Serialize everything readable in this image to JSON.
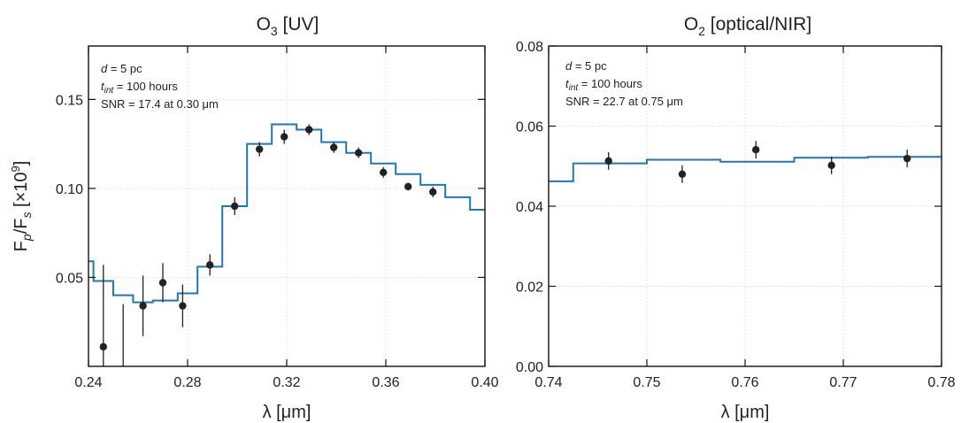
{
  "figure": {
    "ylabel_main": "F",
    "ylabel_sub1": "p",
    "ylabel_mid": "/F",
    "ylabel_sub2": "s",
    "ylabel_unit": " [×10",
    "ylabel_exp": "9",
    "ylabel_close": "]"
  },
  "colors": {
    "model": "#1f77b4",
    "points": "#222222",
    "frame": "#111111",
    "grid": "#e3e3e3"
  },
  "chart_data": [
    {
      "type": "line",
      "title_main": "O",
      "title_sub": "3",
      "title_rest": " [UV]",
      "xlabel": "λ [μm]",
      "ylabel": "Fp/Fs [×10^9]",
      "xlim": [
        0.24,
        0.4
      ],
      "ylim": [
        0.0,
        0.18
      ],
      "xticks": [
        0.24,
        0.28,
        0.32,
        0.36,
        0.4
      ],
      "xtick_labels": [
        "0.24",
        "0.28",
        "0.32",
        "0.36",
        "0.40"
      ],
      "yticks": [
        0.05,
        0.1,
        0.15
      ],
      "ytick_labels": [
        "0.05",
        "0.10",
        "0.15"
      ],
      "grid": true,
      "annotation": {
        "line1_var": "d",
        "line1_rest": " = 5 pc",
        "line2_var": "t",
        "line2_sub": "int",
        "line2_rest": " = 100 hours",
        "line3": "SNR = 17.4 at 0.30 μm"
      },
      "model_steps": {
        "edges": [
          0.24,
          0.242,
          0.25,
          0.258,
          0.266,
          0.276,
          0.284,
          0.294,
          0.304,
          0.314,
          0.324,
          0.334,
          0.344,
          0.354,
          0.364,
          0.374,
          0.384,
          0.394,
          0.4
        ],
        "values": [
          0.059,
          0.048,
          0.04,
          0.036,
          0.037,
          0.041,
          0.056,
          0.09,
          0.125,
          0.136,
          0.133,
          0.126,
          0.12,
          0.114,
          0.108,
          0.102,
          0.095,
          0.088
        ]
      },
      "points": [
        {
          "x": 0.246,
          "y": 0.011,
          "yerr": 0.046
        },
        {
          "x": 0.254,
          "y": -0.01,
          "yerr": 0.045
        },
        {
          "x": 0.262,
          "y": 0.034,
          "yerr": 0.017
        },
        {
          "x": 0.27,
          "y": 0.047,
          "yerr": 0.011
        },
        {
          "x": 0.278,
          "y": 0.034,
          "yerr": 0.012
        },
        {
          "x": 0.289,
          "y": 0.057,
          "yerr": 0.006
        },
        {
          "x": 0.299,
          "y": 0.09,
          "yerr": 0.005
        },
        {
          "x": 0.309,
          "y": 0.122,
          "yerr": 0.004
        },
        {
          "x": 0.319,
          "y": 0.129,
          "yerr": 0.004
        },
        {
          "x": 0.329,
          "y": 0.133,
          "yerr": 0.003
        },
        {
          "x": 0.339,
          "y": 0.123,
          "yerr": 0.003
        },
        {
          "x": 0.349,
          "y": 0.12,
          "yerr": 0.003
        },
        {
          "x": 0.359,
          "y": 0.109,
          "yerr": 0.003
        },
        {
          "x": 0.369,
          "y": 0.101,
          "yerr": 0.002
        },
        {
          "x": 0.379,
          "y": 0.098,
          "yerr": 0.003
        }
      ]
    },
    {
      "type": "line",
      "title_main": "O",
      "title_sub": "2",
      "title_rest": " [optical/NIR]",
      "xlabel": "λ [μm]",
      "ylabel": "",
      "xlim": [
        0.74,
        0.78
      ],
      "ylim": [
        0.0,
        0.08
      ],
      "xticks": [
        0.74,
        0.75,
        0.76,
        0.77,
        0.78
      ],
      "xtick_labels": [
        "0.74",
        "0.75",
        "0.76",
        "0.77",
        "0.78"
      ],
      "yticks": [
        0.0,
        0.02,
        0.04,
        0.06,
        0.08
      ],
      "ytick_labels": [
        "0.00",
        "0.02",
        "0.04",
        "0.06",
        "0.08"
      ],
      "grid": true,
      "annotation": {
        "line1_var": "d",
        "line1_rest": " = 5 pc",
        "line2_var": "t",
        "line2_sub": "int",
        "line2_rest": " = 100 hours",
        "line3": "SNR = 22.7 at 0.75 μm"
      },
      "model_steps": {
        "edges": [
          0.74,
          0.7425,
          0.75,
          0.7575,
          0.765,
          0.7725,
          0.78
        ],
        "values": [
          0.0462,
          0.0507,
          0.0516,
          0.0511,
          0.0521,
          0.0523
        ]
      },
      "points": [
        {
          "x": 0.7461,
          "y": 0.0513,
          "yerr": 0.0022
        },
        {
          "x": 0.7536,
          "y": 0.048,
          "yerr": 0.0022
        },
        {
          "x": 0.7611,
          "y": 0.0541,
          "yerr": 0.0022
        },
        {
          "x": 0.7688,
          "y": 0.0502,
          "yerr": 0.0022
        },
        {
          "x": 0.7765,
          "y": 0.0519,
          "yerr": 0.0022
        }
      ]
    }
  ]
}
